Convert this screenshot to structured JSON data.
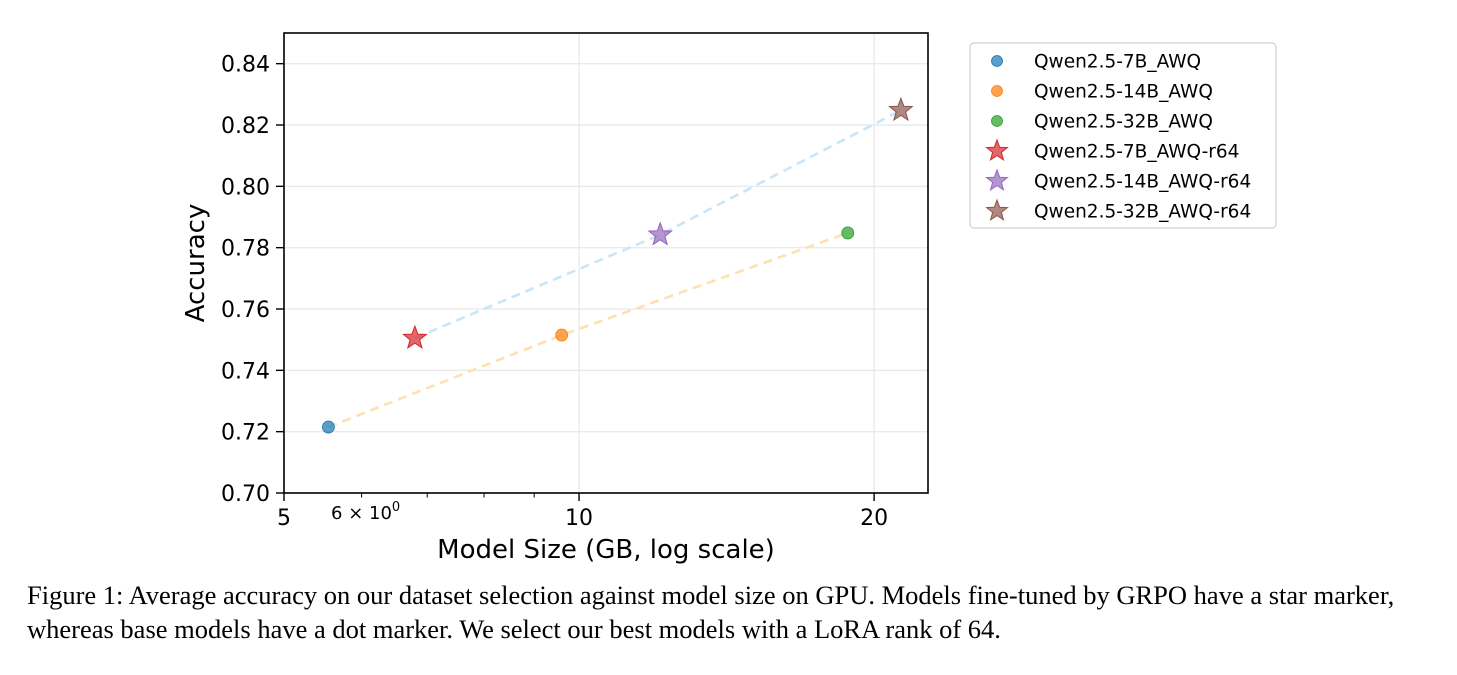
{
  "chart_data": {
    "type": "scatter",
    "xlabel": "Model Size (GB, log scale)",
    "ylabel": "Accuracy",
    "x_scale": "log",
    "xlim": [
      5,
      22.7
    ],
    "ylim": [
      0.7,
      0.85
    ],
    "x_ticks": [
      {
        "value": 5,
        "label": "5"
      },
      {
        "value": 10,
        "label": "10"
      },
      {
        "value": 20,
        "label": "20"
      }
    ],
    "x_minor_label": {
      "value": 6,
      "label": "6 × 10"
    },
    "y_ticks": [
      0.7,
      0.72,
      0.74,
      0.76,
      0.78,
      0.8,
      0.82,
      0.84
    ],
    "grid": true,
    "legend_position": "outside-top-right",
    "series": [
      {
        "name": "Qwen2.5-7B_AWQ",
        "marker": "dot",
        "color": "#1f77b4",
        "x": 5.55,
        "y": 0.7215
      },
      {
        "name": "Qwen2.5-14B_AWQ",
        "marker": "dot",
        "color": "#ff7f0e",
        "x": 9.6,
        "y": 0.7515
      },
      {
        "name": "Qwen2.5-32B_AWQ",
        "marker": "dot",
        "color": "#2ca02c",
        "x": 18.8,
        "y": 0.7848
      },
      {
        "name": "Qwen2.5-7B_AWQ-r64",
        "marker": "star",
        "color": "#d62728",
        "x": 6.8,
        "y": 0.7505
      },
      {
        "name": "Qwen2.5-14B_AWQ-r64",
        "marker": "star",
        "color": "#9467bd",
        "x": 12.1,
        "y": 0.7842
      },
      {
        "name": "Qwen2.5-32B_AWQ-r64",
        "marker": "star",
        "color": "#8c564b",
        "x": 21.3,
        "y": 0.8248
      }
    ],
    "trend_lines": [
      {
        "series": "base",
        "color": "#ffe0b0",
        "points": [
          [
            5.55,
            0.7215
          ],
          [
            9.6,
            0.7515
          ],
          [
            18.8,
            0.7848
          ]
        ]
      },
      {
        "series": "fine-tuned",
        "color": "#c8e6f7",
        "points": [
          [
            6.8,
            0.7505
          ],
          [
            12.1,
            0.7842
          ],
          [
            21.3,
            0.8248
          ]
        ]
      }
    ]
  },
  "caption": "Figure 1: Average accuracy on our dataset selection against model size on GPU. Models fine-tuned by GRPO have a star marker, whereas base models have a dot marker. We select our best models with a LoRA rank of 64."
}
